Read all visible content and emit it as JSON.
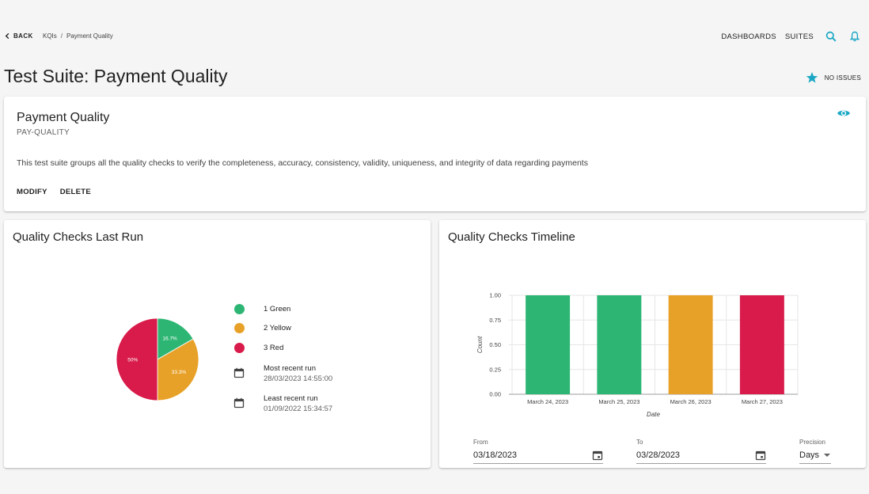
{
  "topbar": {
    "back_label": "BACK",
    "breadcrumbs": [
      "KQIs",
      "Payment Quality"
    ],
    "breadcrumb_sep": "/",
    "nav_links": [
      "DASHBOARDS",
      "SUITES"
    ],
    "icons": [
      "search-icon",
      "bell-icon"
    ],
    "accent_color": "#1aa7c4"
  },
  "page": {
    "title": "Test Suite: Payment Quality",
    "status_text": "NO ISSUES",
    "status_icon": "star-icon"
  },
  "suite": {
    "name": "Payment Quality",
    "code": "PAY-QUALITY",
    "description": "This test suite groups all the quality checks to verify the completeness, accuracy, consistency, validity, uniqueness, and integrity of data regarding payments",
    "actions": [
      "MODIFY",
      "DELETE"
    ],
    "watch_icon": "eye-icon"
  },
  "last_run": {
    "title": "Quality Checks Last Run",
    "legend": [
      {
        "label": "1 Green",
        "color": "#2db673"
      },
      {
        "label": "2 Yellow",
        "color": "#e8a128"
      },
      {
        "label": "3 Red",
        "color": "#d81b4a"
      }
    ],
    "most_recent_label": "Most recent run",
    "most_recent_value": "28/03/2023 14:55:00",
    "least_recent_label": "Least recent run",
    "least_recent_value": "01/09/2022 15:34:57"
  },
  "timeline": {
    "title": "Quality Checks Timeline",
    "from_label": "From",
    "from_value": "03/18/2023",
    "to_label": "To",
    "to_value": "03/28/2023",
    "precision_label": "Precision",
    "precision_value": "Days"
  },
  "chart_data": [
    {
      "type": "pie",
      "slices": [
        {
          "name": "Green",
          "value": 16.7,
          "label": "16.7%",
          "color": "#2db673"
        },
        {
          "name": "Yellow",
          "value": 33.3,
          "label": "33.3%",
          "color": "#e8a128"
        },
        {
          "name": "Red",
          "value": 50,
          "label": "50%",
          "color": "#d81b4a"
        }
      ]
    },
    {
      "type": "bar",
      "categories": [
        "March 24, 2023",
        "March 25, 2023",
        "March 26, 2023",
        "March 27, 2023"
      ],
      "values": [
        1.0,
        1.0,
        1.0,
        1.0
      ],
      "colors": [
        "#2db673",
        "#2db673",
        "#e8a128",
        "#d81b4a"
      ],
      "xlabel": "Date",
      "ylabel": "Count",
      "ylim": [
        0,
        1.0
      ],
      "yticks": [
        "0.00",
        "0.25",
        "0.50",
        "0.75",
        "1.00"
      ],
      "grid": true
    }
  ]
}
